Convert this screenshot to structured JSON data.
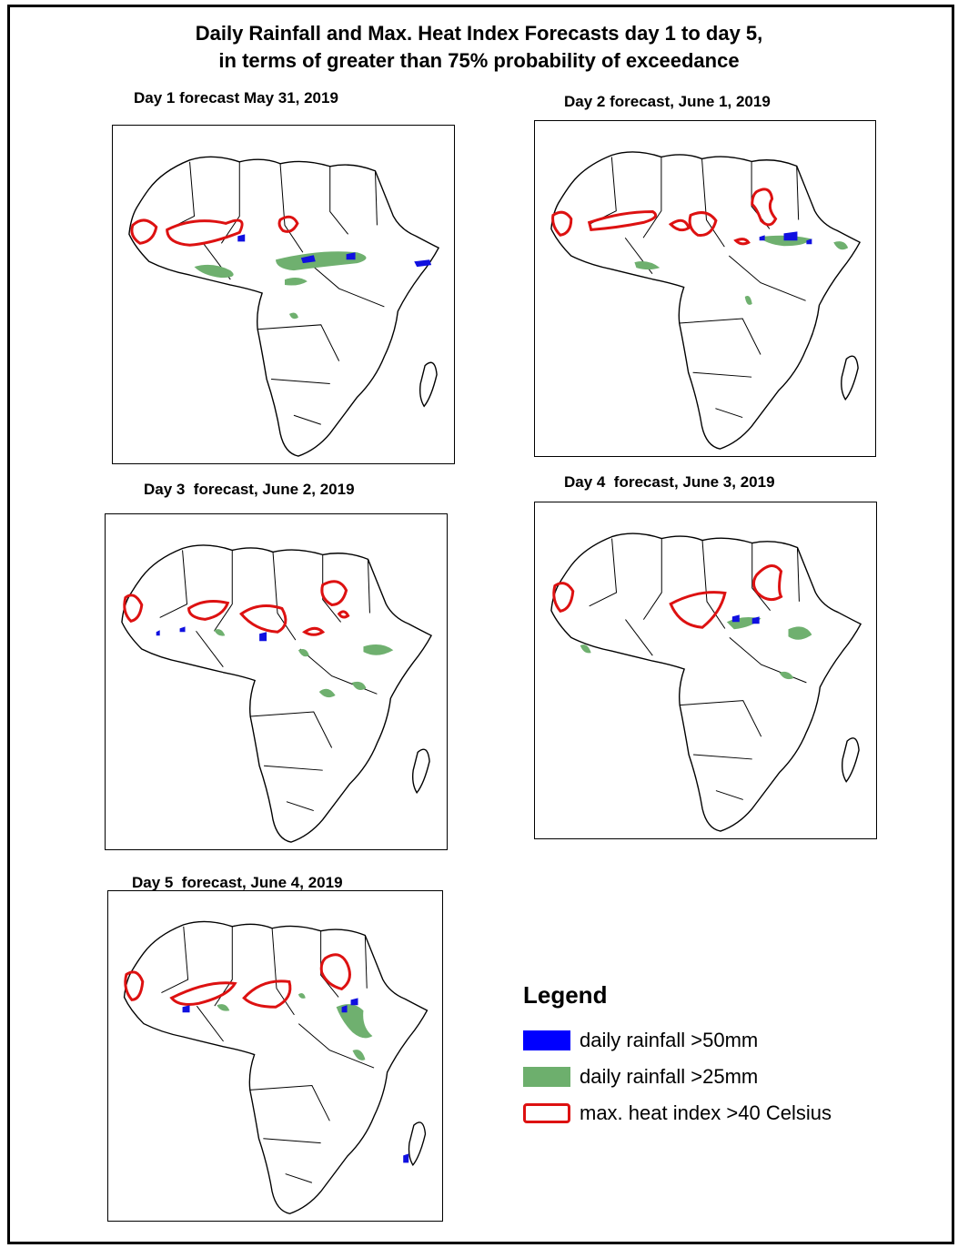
{
  "title": {
    "line1": "Daily Rainfall and Max. Heat Index Forecasts day 1 to day 5,",
    "line2": "in terms of greater than 75% probability of exceedance"
  },
  "maps": [
    {
      "label": "Day 1 forecast May 31, 2019"
    },
    {
      "label": "Day 2 forecast, June 1, 2019"
    },
    {
      "label": "Day 3  forecast, June 2, 2019"
    },
    {
      "label": "Day 4  forecast, June 3, 2019"
    },
    {
      "label": "Day 5  forecast, June 4, 2019"
    }
  ],
  "legend": {
    "title": "Legend",
    "items": [
      {
        "label": "daily rainfall >50mm",
        "color": "#0000ff",
        "kind": "fill"
      },
      {
        "label": "daily rainfall >25mm",
        "color": "#6daf6d",
        "kind": "fill"
      },
      {
        "label": "max. heat index >40 Celsius",
        "color": "#dd1111",
        "kind": "outline"
      }
    ]
  },
  "colors": {
    "heavy_rain": "#1010e0",
    "moderate_rain": "#6fb06f",
    "heat": "#dd1111",
    "coastline": "#000000"
  }
}
